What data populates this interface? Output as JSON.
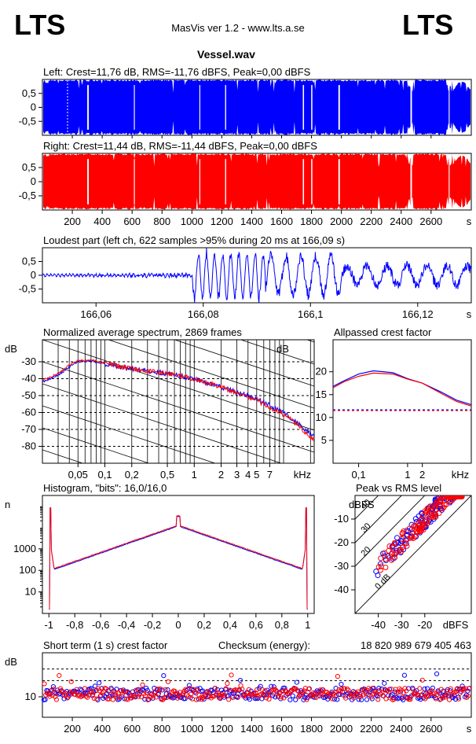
{
  "header": {
    "logo_left": "LTS",
    "logo_right": "LTS",
    "app_title": "MasVis ver 1.2 - www.lts.a.se",
    "file_name": "Vessel.wav"
  },
  "colors": {
    "left": "#0000ff",
    "right": "#ff0000",
    "grid": "#000000"
  },
  "chart_data": [
    {
      "id": "left-waveform",
      "type": "area",
      "title": "Left: Crest=11,76 dB, RMS=-11,76 dBFS, Peak=0,00 dBFS",
      "yticks": [
        "0,5",
        "0",
        "-0,5"
      ],
      "ytick_values": [
        0.5,
        0,
        -0.5
      ],
      "ylim": [
        -1,
        1
      ],
      "xlim": [
        0,
        2869
      ],
      "series": [
        {
          "color": "#0000ff"
        }
      ]
    },
    {
      "id": "right-waveform",
      "type": "area",
      "title": "Right: Crest=11,44 dB, RMS=-11,44 dBFS, Peak=0,00 dBFS",
      "yticks": [
        "0,5",
        "0",
        "-0,5"
      ],
      "ytick_values": [
        0.5,
        0,
        -0.5
      ],
      "ylim": [
        -1,
        1
      ],
      "xlim": [
        0,
        2869
      ],
      "xticks": [
        "200",
        "400",
        "600",
        "800",
        "1000",
        "1200",
        "1400",
        "1600",
        "1800",
        "2000",
        "2200",
        "2400",
        "2600"
      ],
      "xtick_values": [
        200,
        400,
        600,
        800,
        1000,
        1200,
        1400,
        1600,
        1800,
        2000,
        2200,
        2400,
        2600
      ],
      "xunit": "s",
      "series": [
        {
          "color": "#ff0000"
        }
      ]
    },
    {
      "id": "loudest-part",
      "type": "line",
      "title": "Loudest part (left  ch, 622 samples >95% during 20 ms at 166,09 s)",
      "yticks": [
        "0,5",
        "0",
        "-0,5"
      ],
      "ytick_values": [
        0.5,
        0,
        -0.5
      ],
      "ylim": [
        -1,
        1
      ],
      "xlim": [
        166.05,
        166.13
      ],
      "xticks": [
        "166,06",
        "166,08",
        "166,1",
        "166,12"
      ],
      "xtick_values": [
        166.06,
        166.08,
        166.1,
        166.12
      ],
      "xunit": "s",
      "series": [
        {
          "color": "#0000ff"
        }
      ]
    },
    {
      "id": "avg-spectrum",
      "type": "line",
      "title": "Normalized average spectrum, 2869 frames",
      "ylabel": "dB",
      "xunit": "kHz",
      "yticks": [
        "-30",
        "-40",
        "-50",
        "-60",
        "-70",
        "-80"
      ],
      "ytick_values": [
        -30,
        -40,
        -50,
        -60,
        -70,
        -80
      ],
      "ylim": [
        -90,
        -17
      ],
      "xlim": [
        0.02,
        22
      ],
      "xticks": [
        "0,05",
        "0,1",
        "0,2",
        "0,5",
        "1",
        "2",
        "3",
        "4",
        "5",
        "7"
      ],
      "xtick_values": [
        0.05,
        0.1,
        0.2,
        0.5,
        1,
        2,
        3,
        4,
        5,
        7
      ],
      "x_log": true,
      "series": [
        {
          "color": "#0000ff",
          "x": [
            0.02,
            0.03,
            0.04,
            0.05,
            0.07,
            0.1,
            0.2,
            0.5,
            1,
            2,
            5,
            10,
            15,
            20
          ],
          "y": [
            -42,
            -38,
            -33,
            -30,
            -29.5,
            -31,
            -34,
            -37,
            -40,
            -45,
            -52,
            -60,
            -67,
            -73
          ]
        },
        {
          "color": "#ff0000",
          "x": [
            0.02,
            0.03,
            0.04,
            0.05,
            0.07,
            0.1,
            0.2,
            0.5,
            1,
            2,
            5,
            10,
            15,
            20
          ],
          "y": [
            -41,
            -37,
            -32,
            -29.5,
            -29,
            -31,
            -34,
            -37,
            -40,
            -45,
            -53,
            -61,
            -68,
            -75
          ]
        }
      ]
    },
    {
      "id": "allpassed-crest",
      "type": "line",
      "title": "Allpassed crest factor",
      "ylabel": "dB",
      "xunit": "kHz",
      "yticks": [
        "20",
        "15",
        "10",
        "5"
      ],
      "ytick_values": [
        20,
        15,
        10,
        5
      ],
      "ylim": [
        0,
        27
      ],
      "xlim": [
        0.03,
        20
      ],
      "xticks": [
        "0,1",
        "1",
        "2"
      ],
      "xtick_values": [
        0.1,
        1,
        2
      ],
      "x_log": true,
      "reference_level": 11.6,
      "series": [
        {
          "color": "#0000ff",
          "x": [
            0.03,
            0.05,
            0.1,
            0.2,
            0.5,
            1,
            2,
            5,
            10,
            20
          ],
          "y": [
            16.8,
            18,
            19.5,
            20.2,
            19.8,
            18.5,
            17.5,
            15.5,
            13.8,
            12.8
          ]
        },
        {
          "color": "#ff0000",
          "x": [
            0.03,
            0.05,
            0.1,
            0.2,
            0.5,
            1,
            2,
            5,
            10,
            20
          ],
          "y": [
            16.5,
            17.8,
            19,
            19.7,
            19.5,
            18.4,
            17.5,
            15.2,
            13.5,
            12.5
          ]
        }
      ]
    },
    {
      "id": "histogram",
      "type": "line",
      "title": "Histogram, \"bits\": 16,0/16,0",
      "ylabel": "n",
      "yticks": [
        "1000",
        "100",
        "10"
      ],
      "ytick_values": [
        1000,
        100,
        10
      ],
      "y_log": true,
      "ylim": [
        1,
        300000
      ],
      "xlim": [
        -1.05,
        1.05
      ],
      "xticks": [
        "-1",
        "-0,8",
        "-0,6",
        "-0,4",
        "-0,2",
        "0",
        "0,2",
        "0,4",
        "0,6",
        "0,8",
        "1"
      ],
      "xtick_values": [
        -1,
        -0.8,
        -0.6,
        -0.4,
        -0.2,
        0,
        0.2,
        0.4,
        0.6,
        0.8,
        1
      ],
      "series": [
        {
          "color": "#0000ff"
        },
        {
          "color": "#ff0000"
        }
      ]
    },
    {
      "id": "peak-vs-rms",
      "type": "scatter",
      "title": "Peak vs RMS level",
      "ylabel": "dBFS",
      "xunit": "dBFS",
      "yticks": [
        "-10",
        "-20",
        "-30",
        "-40"
      ],
      "ytick_values": [
        -10,
        -20,
        -30,
        -40
      ],
      "xticks": [
        "-40",
        "-30",
        "-20"
      ],
      "xtick_values": [
        -40,
        -30,
        -20
      ],
      "xlim": [
        -50,
        0
      ],
      "ylim": [
        -50,
        0
      ],
      "crest_lines": [
        "40",
        "30",
        "20",
        "0 dB"
      ],
      "series": [
        {
          "color": "#0000ff"
        },
        {
          "color": "#ff0000"
        }
      ]
    },
    {
      "id": "short-term-crest",
      "type": "scatter",
      "title": "Short term (1 s) crest factor",
      "checksum_label": "Checksum (energy):",
      "checksum_value": "18 820 989 679 405 463",
      "ylabel": "dB",
      "yticks": [
        "10"
      ],
      "ytick_values": [
        10
      ],
      "y_log": true,
      "ylim": [
        6,
        30
      ],
      "xlim": [
        0,
        2869
      ],
      "xticks": [
        "200",
        "400",
        "600",
        "800",
        "1000",
        "1200",
        "1400",
        "1600",
        "1800",
        "2000",
        "2200",
        "2400",
        "2600"
      ],
      "xtick_values": [
        200,
        400,
        600,
        800,
        1000,
        1200,
        1400,
        1600,
        1800,
        2000,
        2200,
        2400,
        2600
      ],
      "xunit": "s",
      "series": [
        {
          "color": "#0000ff"
        },
        {
          "color": "#ff0000"
        }
      ]
    }
  ]
}
